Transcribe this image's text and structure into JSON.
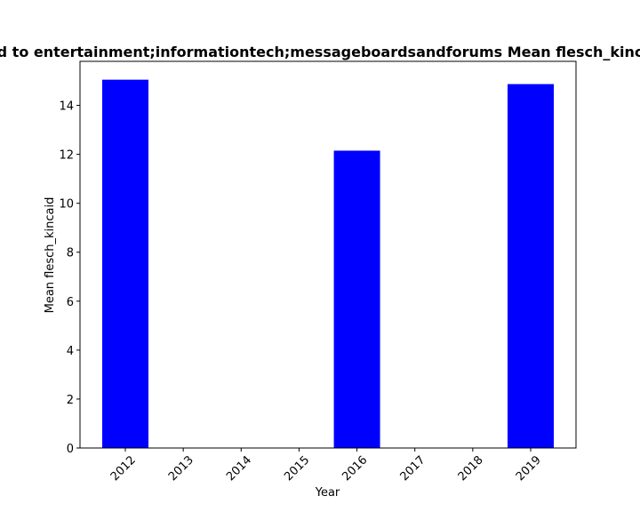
{
  "chart_data": {
    "type": "bar",
    "title": "…d to entertainment;informationtech;messageboardsandforums Mean flesch_kinc…",
    "xlabel": "Year",
    "ylabel": "Mean flesch_kincaid",
    "categories": [
      "2012",
      "2013",
      "2014",
      "2015",
      "2016",
      "2017",
      "2018",
      "2019"
    ],
    "values": [
      15.05,
      0,
      0,
      0,
      12.15,
      0,
      0,
      14.87
    ],
    "ylim": [
      0,
      15.8
    ],
    "yticks": [
      0,
      2,
      4,
      6,
      8,
      10,
      12,
      14
    ],
    "bar_color": "#0000ff",
    "grid": false,
    "legend": false
  }
}
